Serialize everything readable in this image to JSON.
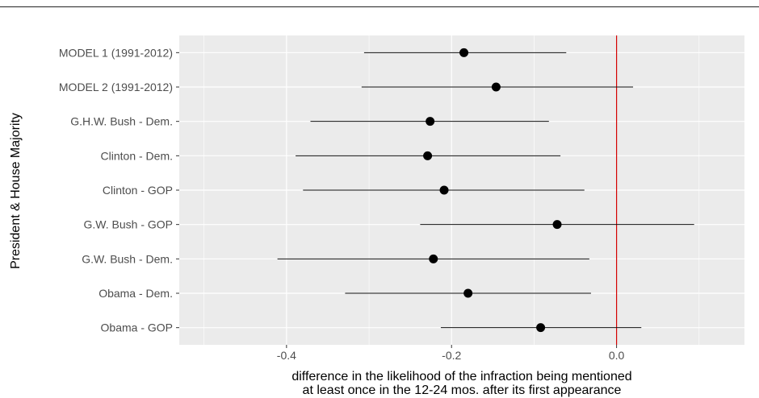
{
  "chart_data": {
    "type": "forest",
    "title": "",
    "xlabel_line1": "difference in the likelihood of the infraction being mentioned",
    "xlabel_line2": "at least once in the 12-24 mos. after its first appearance",
    "ylabel": "President & House Majority",
    "xlim": [
      -0.53,
      0.155
    ],
    "x_ticks": [
      -0.4,
      -0.2,
      0.0
    ],
    "x_tick_labels": [
      "-0.4",
      "-0.2",
      "0.0"
    ],
    "reference_line": {
      "x": 0.0,
      "color": "#d40000"
    },
    "panel_bg": "#ebebeb",
    "grid_color": "#ffffff",
    "point_color": "#000000",
    "categories": [
      "MODEL 1 (1991-2012)",
      "MODEL 2 (1991-2012)",
      "G.H.W. Bush - Dem.",
      "Clinton - Dem.",
      "Clinton - GOP",
      "G.W. Bush - GOP",
      "G.W. Bush - Dem.",
      "Obama - Dem.",
      "Obama - GOP"
    ],
    "estimates": [
      -0.185,
      -0.146,
      -0.226,
      -0.229,
      -0.209,
      -0.072,
      -0.222,
      -0.18,
      -0.092
    ],
    "lower": [
      -0.306,
      -0.309,
      -0.371,
      -0.389,
      -0.38,
      -0.238,
      -0.411,
      -0.329,
      -0.213
    ],
    "upper": [
      -0.061,
      0.02,
      -0.082,
      -0.068,
      -0.039,
      0.094,
      -0.033,
      -0.031,
      0.03
    ]
  }
}
